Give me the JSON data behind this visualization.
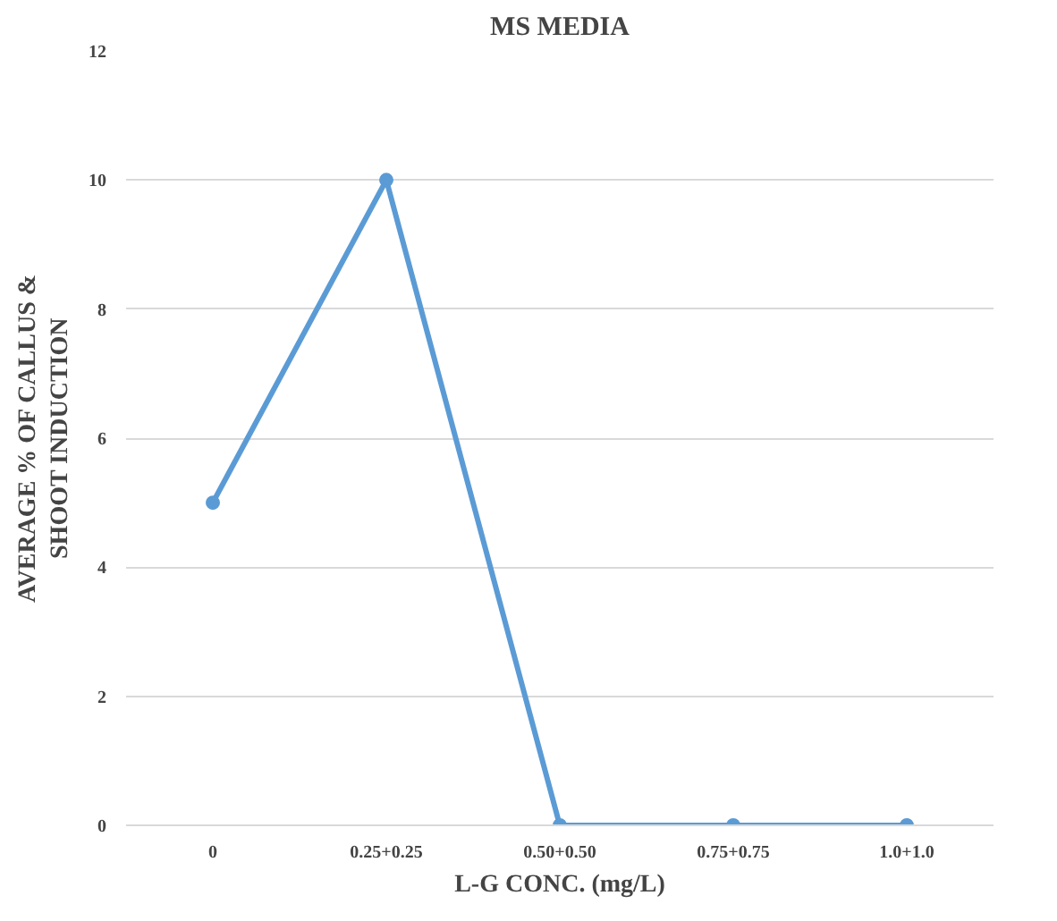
{
  "chart_data": {
    "type": "line",
    "title": "MS MEDIA",
    "xlabel": "L-G CONC. (mg/L)",
    "ylabel": "AVERAGE % OF CALLUS &\nSHOOT INDUCTION",
    "categories": [
      "0",
      "0.25+0.25",
      "0.50+0.50",
      "0.75+0.75",
      "1.0+1.0"
    ],
    "series": [
      {
        "color": "#5b9bd5",
        "values": [
          5,
          10,
          0,
          0,
          0
        ]
      }
    ],
    "ylim": [
      0,
      12
    ],
    "yticks": [
      0,
      2,
      4,
      6,
      8,
      10,
      12
    ],
    "grid": "y",
    "marker": "circle",
    "line_style": "solid"
  }
}
